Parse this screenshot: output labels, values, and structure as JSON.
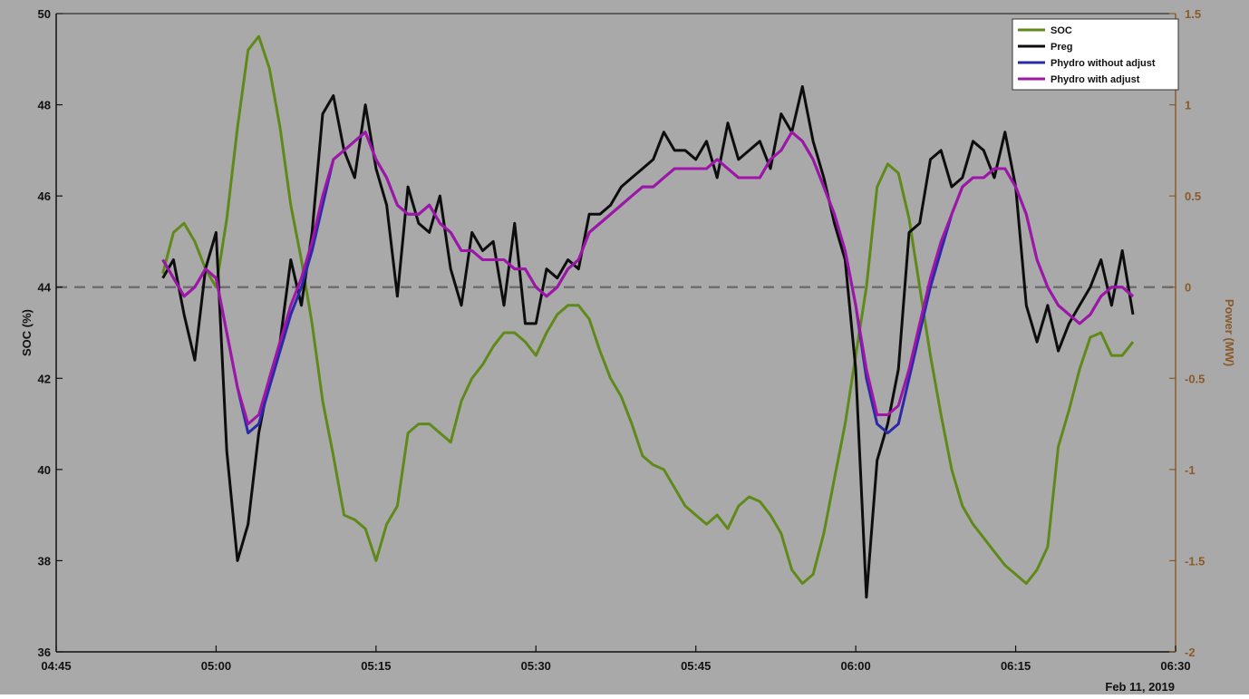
{
  "figure": {
    "background": "#a9a9a9",
    "axes_background": "#a9a9a9",
    "date_label": "Feb 11, 2019"
  },
  "chart_data": {
    "type": "line",
    "title": "",
    "xlabel": "",
    "ylabel_left": "SOC (%)",
    "ylabel_right": "Power (MW)",
    "x_unit": "time (HH:MM)",
    "xlim": [
      "04:45",
      "06:30"
    ],
    "ylim_left": [
      36,
      50
    ],
    "ylim_right": [
      -2,
      1.5
    ],
    "x_ticks": [
      "04:45",
      "05:00",
      "05:15",
      "05:30",
      "05:45",
      "06:00",
      "06:15",
      "06:30"
    ],
    "y_ticks_left": [
      "36",
      "38",
      "40",
      "42",
      "44",
      "46",
      "48",
      "50"
    ],
    "y_ticks_right": [
      "-2",
      "-1.5",
      "-1",
      "-0.5",
      "0",
      "0.5",
      "1",
      "1.5"
    ],
    "legend_position": "top-right",
    "grid": false,
    "reference_line": {
      "axis": "right",
      "value": 0,
      "style": "dashed",
      "color": "#6e6e6e"
    },
    "series": [
      {
        "name": "SOC",
        "axis": "left",
        "color": "#5f8a1a",
        "x": [
          "04:55",
          "04:56",
          "04:57",
          "04:58",
          "04:59",
          "05:00",
          "05:01",
          "05:02",
          "05:03",
          "05:04",
          "05:05",
          "05:06",
          "05:07",
          "05:08",
          "05:09",
          "05:10",
          "05:11",
          "05:12",
          "05:13",
          "05:14",
          "05:15",
          "05:16",
          "05:17",
          "05:18",
          "05:19",
          "05:20",
          "05:21",
          "05:22",
          "05:23",
          "05:24",
          "05:25",
          "05:26",
          "05:27",
          "05:28",
          "05:29",
          "05:30",
          "05:31",
          "05:32",
          "05:33",
          "05:34",
          "05:35",
          "05:36",
          "05:37",
          "05:38",
          "05:39",
          "05:40",
          "05:41",
          "05:42",
          "05:43",
          "05:44",
          "05:45",
          "05:46",
          "05:47",
          "05:48",
          "05:49",
          "05:50",
          "05:51",
          "05:52",
          "05:53",
          "05:54",
          "05:55",
          "05:56",
          "05:57",
          "05:58",
          "05:59",
          "06:00",
          "06:01",
          "06:02",
          "06:03",
          "06:04",
          "06:05",
          "06:06",
          "06:07",
          "06:08",
          "06:09",
          "06:10",
          "06:11",
          "06:12",
          "06:13",
          "06:14",
          "06:15",
          "06:16",
          "06:17",
          "06:18",
          "06:19",
          "06:20",
          "06:21",
          "06:22",
          "06:23",
          "06:24",
          "06:25",
          "06:26"
        ],
        "y": [
          44.3,
          45.2,
          45.4,
          45.0,
          44.4,
          44.0,
          45.5,
          47.5,
          49.2,
          49.5,
          48.8,
          47.5,
          45.8,
          44.6,
          43.2,
          41.5,
          40.3,
          39.0,
          38.9,
          38.7,
          38.0,
          38.8,
          39.2,
          40.8,
          41.0,
          41.0,
          40.8,
          40.6,
          41.5,
          42.0,
          42.3,
          42.7,
          43.0,
          43.0,
          42.8,
          42.5,
          43.0,
          43.4,
          43.6,
          43.6,
          43.3,
          42.6,
          42.0,
          41.6,
          41.0,
          40.3,
          40.1,
          40.0,
          39.6,
          39.2,
          39.0,
          38.8,
          39.0,
          38.7,
          39.2,
          39.4,
          39.3,
          39.0,
          38.6,
          37.8,
          37.5,
          37.7,
          38.6,
          39.8,
          41.0,
          42.5,
          44.0,
          46.2,
          46.7,
          46.5,
          45.5,
          44.0,
          42.5,
          41.2,
          40.0,
          39.2,
          38.8,
          38.5,
          38.2,
          37.9,
          37.7,
          37.5,
          37.8,
          38.3,
          40.5,
          41.3,
          42.2,
          42.9,
          43.0,
          42.5,
          42.5,
          42.8
        ]
      },
      {
        "name": "Preg",
        "axis": "right",
        "color": "#0d0d0d",
        "x": [
          "04:55",
          "04:56",
          "04:57",
          "04:58",
          "04:59",
          "05:00",
          "05:01",
          "05:02",
          "05:03",
          "05:04",
          "05:05",
          "05:06",
          "05:07",
          "05:08",
          "05:09",
          "05:10",
          "05:11",
          "05:12",
          "05:13",
          "05:14",
          "05:15",
          "05:16",
          "05:17",
          "05:18",
          "05:19",
          "05:20",
          "05:21",
          "05:22",
          "05:23",
          "05:24",
          "05:25",
          "05:26",
          "05:27",
          "05:28",
          "05:29",
          "05:30",
          "05:31",
          "05:32",
          "05:33",
          "05:34",
          "05:35",
          "05:36",
          "05:37",
          "05:38",
          "05:39",
          "05:40",
          "05:41",
          "05:42",
          "05:43",
          "05:44",
          "05:45",
          "05:46",
          "05:47",
          "05:48",
          "05:49",
          "05:50",
          "05:51",
          "05:52",
          "05:53",
          "05:54",
          "05:55",
          "05:56",
          "05:57",
          "05:58",
          "05:59",
          "06:00",
          "06:01",
          "06:02",
          "06:03",
          "06:04",
          "06:05",
          "06:06",
          "06:07",
          "06:08",
          "06:09",
          "06:10",
          "06:11",
          "06:12",
          "06:13",
          "06:14",
          "06:15",
          "06:16",
          "06:17",
          "06:18",
          "06:19",
          "06:20",
          "06:21",
          "06:22",
          "06:23",
          "06:24",
          "06:25",
          "06:26"
        ],
        "y": [
          0.05,
          0.15,
          -0.15,
          -0.4,
          0.1,
          0.3,
          -0.9,
          -1.5,
          -1.3,
          -0.8,
          -0.5,
          -0.3,
          0.15,
          -0.1,
          0.3,
          0.95,
          1.05,
          0.75,
          0.6,
          1.0,
          0.65,
          0.45,
          -0.05,
          0.55,
          0.35,
          0.3,
          0.5,
          0.1,
          -0.1,
          0.3,
          0.2,
          0.25,
          -0.1,
          0.35,
          -0.2,
          -0.2,
          0.1,
          0.05,
          0.15,
          0.1,
          0.4,
          0.4,
          0.45,
          0.55,
          0.6,
          0.65,
          0.7,
          0.85,
          0.75,
          0.75,
          0.7,
          0.8,
          0.6,
          0.9,
          0.7,
          0.75,
          0.8,
          0.65,
          0.95,
          0.85,
          1.1,
          0.8,
          0.6,
          0.35,
          0.15,
          -0.45,
          -1.7,
          -0.95,
          -0.75,
          -0.45,
          0.3,
          0.35,
          0.7,
          0.75,
          0.55,
          0.6,
          0.8,
          0.75,
          0.6,
          0.85,
          0.55,
          -0.1,
          -0.3,
          -0.1,
          -0.35,
          -0.2,
          -0.1,
          0.0,
          0.15,
          -0.1,
          0.2,
          -0.15
        ]
      },
      {
        "name": "Phydro without adjust",
        "axis": "right",
        "color": "#2a2aa8",
        "x": [
          "04:55",
          "04:57",
          "04:58",
          "04:59",
          "05:00",
          "05:01",
          "05:02",
          "05:03",
          "05:04",
          "05:05",
          "05:06",
          "05:07",
          "05:08",
          "05:09",
          "05:10",
          "05:11",
          "05:12",
          "05:13",
          "05:14",
          "05:15",
          "05:16",
          "05:17",
          "05:18",
          "05:19",
          "05:20",
          "05:21",
          "05:22",
          "05:23",
          "05:24",
          "05:25",
          "05:26",
          "05:27",
          "05:28",
          "05:29",
          "05:30",
          "05:31",
          "05:32",
          "05:33",
          "05:34",
          "05:35",
          "05:36",
          "05:37",
          "05:38",
          "05:39",
          "05:40",
          "05:41",
          "05:42",
          "05:43",
          "05:44",
          "05:45",
          "05:46",
          "05:47",
          "05:48",
          "05:49",
          "05:50",
          "05:51",
          "05:52",
          "05:53",
          "05:54",
          "05:55",
          "05:56",
          "05:57",
          "05:58",
          "05:59",
          "06:00",
          "06:01",
          "06:02",
          "06:03",
          "06:04",
          "06:05",
          "06:06",
          "06:07",
          "06:08",
          "06:09",
          "06:10",
          "06:11",
          "06:12",
          "06:13",
          "06:14",
          "06:15",
          "06:16",
          "06:17",
          "06:18",
          "06:19",
          "06:20",
          "06:21",
          "06:22",
          "06:23",
          "06:24",
          "06:25",
          "06:26"
        ],
        "y": [
          0.15,
          -0.05,
          0.0,
          0.1,
          0.05,
          -0.25,
          -0.55,
          -0.8,
          -0.75,
          -0.55,
          -0.35,
          -0.15,
          0.0,
          0.2,
          0.45,
          0.7,
          0.75,
          0.8,
          0.85,
          0.7,
          0.6,
          0.45,
          0.4,
          0.4,
          0.45,
          0.35,
          0.3,
          0.2,
          0.2,
          0.15,
          0.15,
          0.15,
          0.1,
          0.1,
          0.0,
          -0.05,
          0.0,
          0.1,
          0.15,
          0.3,
          0.35,
          0.4,
          0.45,
          0.5,
          0.55,
          0.55,
          0.6,
          0.65,
          0.65,
          0.65,
          0.65,
          0.7,
          0.65,
          0.6,
          0.6,
          0.6,
          0.7,
          0.75,
          0.85,
          0.8,
          0.7,
          0.55,
          0.4,
          0.2,
          -0.1,
          -0.5,
          -0.75,
          -0.8,
          -0.75,
          -0.5,
          -0.25,
          0.0,
          0.2,
          0.4,
          0.55,
          0.6,
          0.6,
          0.65,
          0.65,
          0.55,
          0.4,
          0.15,
          0.0,
          -0.1,
          -0.15,
          -0.2,
          -0.15,
          -0.05,
          0.0,
          0.0,
          -0.05
        ]
      },
      {
        "name": "Phydro with adjust",
        "axis": "right",
        "color": "#a015a8",
        "x": [
          "04:55",
          "04:57",
          "04:58",
          "04:59",
          "05:00",
          "05:01",
          "05:02",
          "05:03",
          "05:04",
          "05:05",
          "05:06",
          "05:07",
          "05:08",
          "05:09",
          "05:10",
          "05:11",
          "05:12",
          "05:13",
          "05:14",
          "05:15",
          "05:16",
          "05:17",
          "05:18",
          "05:19",
          "05:20",
          "05:21",
          "05:22",
          "05:23",
          "05:24",
          "05:25",
          "05:26",
          "05:27",
          "05:28",
          "05:29",
          "05:30",
          "05:31",
          "05:32",
          "05:33",
          "05:34",
          "05:35",
          "05:36",
          "05:37",
          "05:38",
          "05:39",
          "05:40",
          "05:41",
          "05:42",
          "05:43",
          "05:44",
          "05:45",
          "05:46",
          "05:47",
          "05:48",
          "05:49",
          "05:50",
          "05:51",
          "05:52",
          "05:53",
          "05:54",
          "05:55",
          "05:56",
          "05:57",
          "05:58",
          "05:59",
          "06:00",
          "06:01",
          "06:02",
          "06:03",
          "06:04",
          "06:05",
          "06:06",
          "06:07",
          "06:08",
          "06:09",
          "06:10",
          "06:11",
          "06:12",
          "06:13",
          "06:14",
          "06:15",
          "06:16",
          "06:17",
          "06:18",
          "06:19",
          "06:20",
          "06:21",
          "06:22",
          "06:23",
          "06:24",
          "06:25",
          "06:26"
        ],
        "y": [
          0.15,
          -0.05,
          0.0,
          0.1,
          0.05,
          -0.25,
          -0.55,
          -0.75,
          -0.7,
          -0.5,
          -0.3,
          -0.1,
          0.05,
          0.25,
          0.5,
          0.7,
          0.75,
          0.8,
          0.85,
          0.7,
          0.6,
          0.45,
          0.4,
          0.4,
          0.45,
          0.35,
          0.3,
          0.2,
          0.2,
          0.15,
          0.15,
          0.15,
          0.1,
          0.1,
          0.0,
          -0.05,
          0.0,
          0.1,
          0.15,
          0.3,
          0.35,
          0.4,
          0.45,
          0.5,
          0.55,
          0.55,
          0.6,
          0.65,
          0.65,
          0.65,
          0.65,
          0.7,
          0.65,
          0.6,
          0.6,
          0.6,
          0.7,
          0.75,
          0.85,
          0.8,
          0.7,
          0.55,
          0.4,
          0.2,
          -0.1,
          -0.45,
          -0.7,
          -0.7,
          -0.65,
          -0.45,
          -0.2,
          0.05,
          0.25,
          0.4,
          0.55,
          0.6,
          0.6,
          0.65,
          0.65,
          0.55,
          0.4,
          0.15,
          0.0,
          -0.1,
          -0.15,
          -0.2,
          -0.15,
          -0.05,
          0.0,
          0.0,
          -0.05
        ]
      }
    ]
  }
}
